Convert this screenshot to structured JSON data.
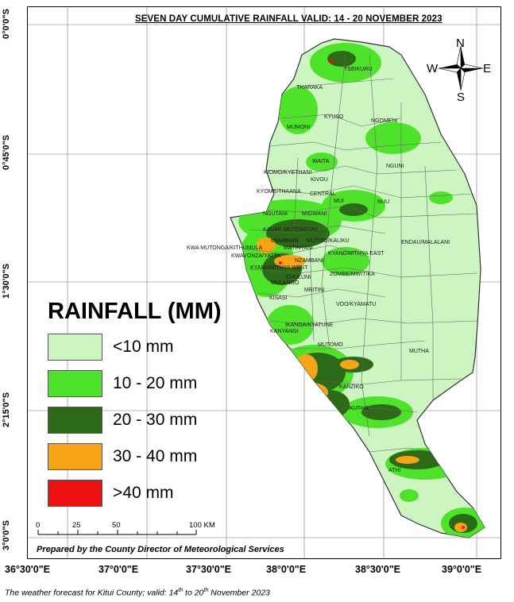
{
  "title": "SEVEN DAY CUMULATIVE RAINFALL VALID: 14 - 20 NOVEMBER 2023",
  "latitude_labels": [
    "0°0'0\"S",
    "0°45'0\"S",
    "1°30'0\"S",
    "2°15'0\"S",
    "3°0'0\"S"
  ],
  "longitude_labels": [
    "36°30'0\"E",
    "37°0'0\"E",
    "37°30'0\"E",
    "38°0'0\"E",
    "38°30'0\"E",
    "39°0'0\"E"
  ],
  "compass": {
    "n": "N",
    "s": "S",
    "e": "E",
    "w": "W"
  },
  "legend": {
    "title": "RAINFALL (MM)",
    "items": [
      {
        "label": "<10 mm",
        "color": "#ccf5c2"
      },
      {
        "label": "10 - 20 mm",
        "color": "#4fe22a"
      },
      {
        "label": "20 - 30 mm",
        "color": "#2d6a17"
      },
      {
        "label": "30 - 40 mm",
        "color": "#f5a516"
      },
      {
        "label": ">40 mm",
        "color": "#ee1111"
      }
    ]
  },
  "scale_bar": {
    "ticks": [
      "0",
      "25",
      "50",
      "100 KM"
    ]
  },
  "prepared_by": "Prepared by the County Director of Meteorological Services",
  "caption": {
    "text": "The weather forecast for Kitui County; valid: 14",
    "sup1": "th",
    "mid": " to 20",
    "sup2": "th",
    "end": " November 2023"
  },
  "places": [
    "TSEIKURU",
    "THARAKA",
    "KYUSO",
    "NGOMENI",
    "MUMONI",
    "WAITA",
    "NGUNI",
    "KIOMO/KYETHANI",
    "KIVOU",
    "KYOME/THAANA",
    "CENTRAL",
    "MUI",
    "NUU",
    "NGUTANI",
    "MIGWANI",
    "KAUWI",
    "MUTONGUNI",
    "MIAMBANI",
    "MUTITO/KALIKU",
    "ENDAU/MALALANI",
    "KWA MUTONGA/KITHUMULA",
    "MATINYANI",
    "KWAVONZA/YATTA",
    "KYANGWITHYA EAST",
    "NZAMBANI",
    "KYANGWITHYA WEST",
    "CHULUNI",
    "ZOMBE/MWITIKA",
    "MULANGO",
    "MBITINI",
    "KISASI",
    "VOO/KYAMATU",
    "IKANGA/KYATUNE",
    "KANYANGI",
    "MUTOMO",
    "MUTHA",
    "KANZIKO",
    "IKUTHA",
    "ATHI"
  ]
}
